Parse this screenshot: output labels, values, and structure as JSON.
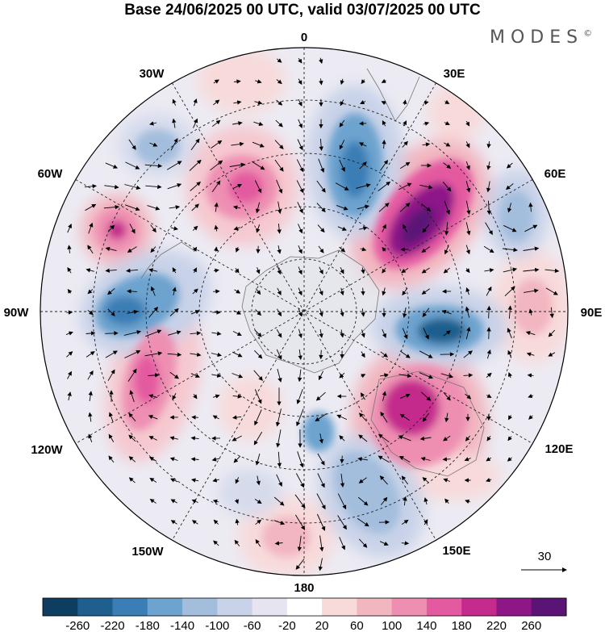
{
  "title": "Base 24/06/2025 00 UTC, valid 03/07/2025 00 UTC",
  "brand": "MODES",
  "brand_mark": "©",
  "map": {
    "projection": "south polar stereographic",
    "longitude_labels": {
      "top": "0",
      "top_right": "30E",
      "right_upper": "60E",
      "right": "90E",
      "right_lower": "120E",
      "bottom_right": "150E",
      "bottom": "180",
      "bottom_left": "150W",
      "left_lower": "120W",
      "left": "90W",
      "left_upper": "60W",
      "top_left": "30W"
    },
    "vector_reference": {
      "value": "30"
    }
  },
  "colorbar": {
    "colors": [
      "#0d3d5f",
      "#1f5f8e",
      "#3b7eb5",
      "#6da3cf",
      "#a3bedd",
      "#c8d2e8",
      "#e6e4f0",
      "#ffffff",
      "#f8dada",
      "#f2b6c0",
      "#ee8fb2",
      "#e45aa0",
      "#c42b8c",
      "#8e1788",
      "#5a1476"
    ],
    "tick_labels": [
      "-260",
      "-220",
      "-180",
      "-140",
      "-100",
      "-60",
      "-20",
      "20",
      "60",
      "100",
      "140",
      "180",
      "220",
      "260"
    ]
  }
}
